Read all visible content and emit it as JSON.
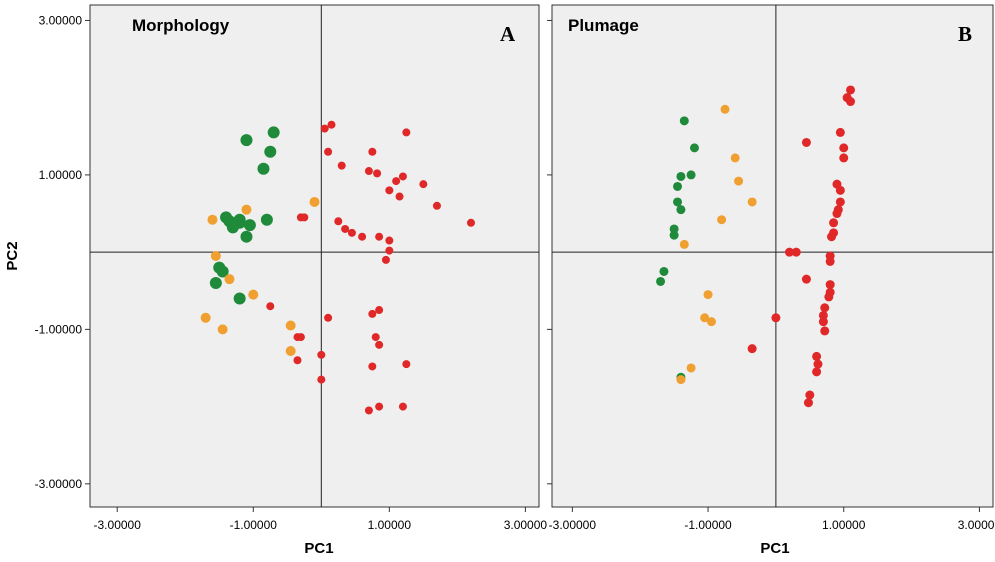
{
  "chart_data": [
    {
      "type": "scatter",
      "panel_label": "A",
      "title": "Morphology",
      "xlabel": "PC1",
      "ylabel": "PC2",
      "xlim": [
        -3.4,
        3.2
      ],
      "ylim": [
        -3.3,
        3.2
      ],
      "x_ticks": [
        "-3.00000",
        "-1.00000",
        "1.00000",
        "3.00000"
      ],
      "y_ticks": [
        "3.00000",
        "1.00000",
        "-1.00000",
        "-3.00000"
      ],
      "x_tick_values": [
        -3,
        -1,
        1,
        3
      ],
      "y_tick_values": [
        3,
        1,
        -1,
        -3
      ],
      "reference_lines": {
        "x": 0,
        "y": 0
      },
      "grid": false,
      "background": "#efefef",
      "series": [
        {
          "color": "#1e8a3a",
          "points": [
            [
              -1.1,
              1.45
            ],
            [
              -0.7,
              1.55
            ],
            [
              -0.75,
              1.3
            ],
            [
              -0.85,
              1.08
            ],
            [
              -1.4,
              0.45
            ],
            [
              -1.35,
              0.4
            ],
            [
              -1.2,
              0.38
            ],
            [
              -1.05,
              0.35
            ],
            [
              -0.8,
              0.42
            ],
            [
              -1.3,
              0.32
            ],
            [
              -1.2,
              0.42
            ],
            [
              -1.1,
              0.2
            ],
            [
              -1.5,
              -0.2
            ],
            [
              -1.45,
              -0.25
            ],
            [
              -1.55,
              -0.4
            ],
            [
              -1.2,
              -0.6
            ]
          ]
        },
        {
          "color": "#f0a030",
          "points": [
            [
              -1.6,
              0.42
            ],
            [
              -1.1,
              0.55
            ],
            [
              -0.1,
              0.65
            ],
            [
              -1.55,
              -0.05
            ],
            [
              -1.35,
              -0.35
            ],
            [
              -1.0,
              -0.55
            ],
            [
              -1.7,
              -0.85
            ],
            [
              -1.45,
              -1.0
            ],
            [
              -0.45,
              -0.95
            ],
            [
              -0.45,
              -1.28
            ]
          ]
        },
        {
          "color": "#e02828",
          "points": [
            [
              0.15,
              1.65
            ],
            [
              0.05,
              1.6
            ],
            [
              1.25,
              1.55
            ],
            [
              0.1,
              1.3
            ],
            [
              0.75,
              1.3
            ],
            [
              0.3,
              1.12
            ],
            [
              0.7,
              1.05
            ],
            [
              0.82,
              1.02
            ],
            [
              1.2,
              0.98
            ],
            [
              1.1,
              0.92
            ],
            [
              1.5,
              0.88
            ],
            [
              1.0,
              0.8
            ],
            [
              1.15,
              0.72
            ],
            [
              1.7,
              0.6
            ],
            [
              2.2,
              0.38
            ],
            [
              -0.3,
              0.45
            ],
            [
              -0.25,
              0.45
            ],
            [
              0.25,
              0.4
            ],
            [
              0.35,
              0.3
            ],
            [
              0.45,
              0.25
            ],
            [
              0.6,
              0.2
            ],
            [
              0.85,
              0.2
            ],
            [
              1.0,
              0.15
            ],
            [
              1.0,
              0.02
            ],
            [
              0.95,
              -0.1
            ],
            [
              -0.75,
              -0.7
            ],
            [
              0.1,
              -0.85
            ],
            [
              0.85,
              -0.75
            ],
            [
              0.75,
              -0.8
            ],
            [
              -0.3,
              -1.1
            ],
            [
              -0.35,
              -1.1
            ],
            [
              0.8,
              -1.1
            ],
            [
              0.85,
              -1.2
            ],
            [
              0.0,
              -1.33
            ],
            [
              -0.35,
              -1.4
            ],
            [
              0.75,
              -1.48
            ],
            [
              1.25,
              -1.45
            ],
            [
              0.0,
              -1.65
            ],
            [
              0.85,
              -2.0
            ],
            [
              0.7,
              -2.05
            ],
            [
              1.2,
              -2.0
            ]
          ]
        }
      ]
    },
    {
      "type": "scatter",
      "panel_label": "B",
      "title": "Plumage",
      "xlabel": "PC1",
      "ylabel": "",
      "xlim": [
        -3.3,
        3.2
      ],
      "ylim": [
        -3.3,
        3.2
      ],
      "x_ticks": [
        "-3.00000",
        "-1.00000",
        "1.00000",
        "3.00000"
      ],
      "y_ticks": [
        "",
        "",
        "",
        ""
      ],
      "x_tick_values": [
        -3,
        -1,
        1,
        3
      ],
      "y_tick_values": [
        3,
        1,
        -1,
        -3
      ],
      "reference_lines": {
        "x": 0,
        "y": 0
      },
      "grid": false,
      "background": "#efefef",
      "series": [
        {
          "color": "#1e8a3a",
          "points": [
            [
              -1.35,
              1.7
            ],
            [
              -1.2,
              1.35
            ],
            [
              -1.25,
              1.0
            ],
            [
              -1.4,
              0.98
            ],
            [
              -1.45,
              0.85
            ],
            [
              -1.45,
              0.65
            ],
            [
              -1.4,
              0.55
            ],
            [
              -1.5,
              0.3
            ],
            [
              -1.5,
              0.22
            ],
            [
              -1.65,
              -0.25
            ],
            [
              -1.7,
              -0.38
            ],
            [
              -1.4,
              -1.62
            ]
          ]
        },
        {
          "color": "#f0a030",
          "points": [
            [
              -0.75,
              1.85
            ],
            [
              -0.6,
              1.22
            ],
            [
              -0.55,
              0.92
            ],
            [
              -0.35,
              0.65
            ],
            [
              -0.8,
              0.42
            ],
            [
              -1.35,
              0.1
            ],
            [
              -1.0,
              -0.55
            ],
            [
              -1.05,
              -0.85
            ],
            [
              -0.95,
              -0.9
            ],
            [
              -1.25,
              -1.5
            ],
            [
              -1.4,
              -1.65
            ]
          ]
        },
        {
          "color": "#e02828",
          "points": [
            [
              1.1,
              2.1
            ],
            [
              1.05,
              2.0
            ],
            [
              1.1,
              1.95
            ],
            [
              0.95,
              1.55
            ],
            [
              0.45,
              1.42
            ],
            [
              1.0,
              1.35
            ],
            [
              1.0,
              1.22
            ],
            [
              0.9,
              0.88
            ],
            [
              0.95,
              0.8
            ],
            [
              0.95,
              0.65
            ],
            [
              0.92,
              0.55
            ],
            [
              0.9,
              0.5
            ],
            [
              0.85,
              0.38
            ],
            [
              0.85,
              0.25
            ],
            [
              0.82,
              0.2
            ],
            [
              0.2,
              0.0
            ],
            [
              0.3,
              0.0
            ],
            [
              0.8,
              -0.05
            ],
            [
              0.8,
              -0.12
            ],
            [
              0.45,
              -0.35
            ],
            [
              0.8,
              -0.42
            ],
            [
              0.8,
              -0.52
            ],
            [
              0.78,
              -0.58
            ],
            [
              0.72,
              -0.72
            ],
            [
              0.7,
              -0.82
            ],
            [
              0.7,
              -0.9
            ],
            [
              0.0,
              -0.85
            ],
            [
              0.72,
              -1.02
            ],
            [
              -0.35,
              -1.25
            ],
            [
              0.6,
              -1.35
            ],
            [
              0.62,
              -1.45
            ],
            [
              0.6,
              -1.55
            ],
            [
              0.5,
              -1.85
            ],
            [
              0.48,
              -1.95
            ]
          ]
        }
      ]
    }
  ]
}
